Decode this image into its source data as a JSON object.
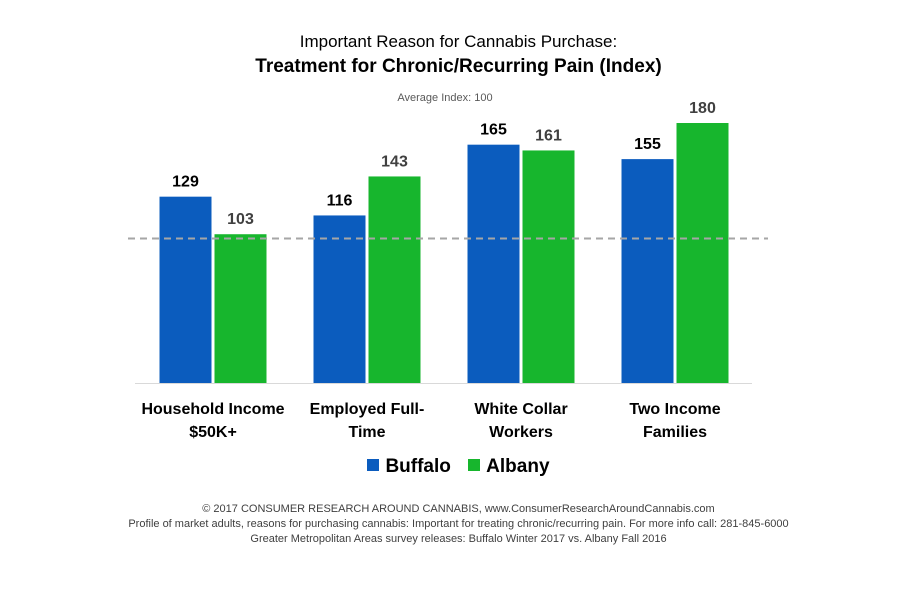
{
  "chart_data": {
    "type": "bar",
    "title": "Important Reason for Cannabis Purchase:",
    "subtitle": "Treatment for Chronic/Recurring Pain (Index)",
    "reference_label": "Average Index: 100",
    "reference_value": 100,
    "categories": [
      [
        "Household Income",
        "$50K+"
      ],
      [
        "Employed Full-",
        "Time"
      ],
      [
        "White Collar",
        "Workers"
      ],
      [
        "Two Income",
        "Families"
      ]
    ],
    "series": [
      {
        "name": "Buffalo",
        "color": "#0b5cbe",
        "values": [
          129,
          116,
          165,
          155
        ]
      },
      {
        "name": "Albany",
        "color": "#17b62d",
        "values": [
          103,
          143,
          161,
          180
        ]
      }
    ],
    "ylim": [
      0,
      180
    ],
    "grid": false,
    "legend_position": "bottom"
  },
  "footer": {
    "line1": "© 2017 CONSUMER RESEARCH AROUND CANNABIS, www.ConsumerResearchAroundCannabis.com",
    "line2": "Profile of market adults, reasons for purchasing cannabis: Important for treating chronic/recurring pain. For more info call: 281-845-6000",
    "line3": "Greater Metropolitan Areas survey releases: Buffalo Winter 2017 vs. Albany Fall 2016"
  }
}
